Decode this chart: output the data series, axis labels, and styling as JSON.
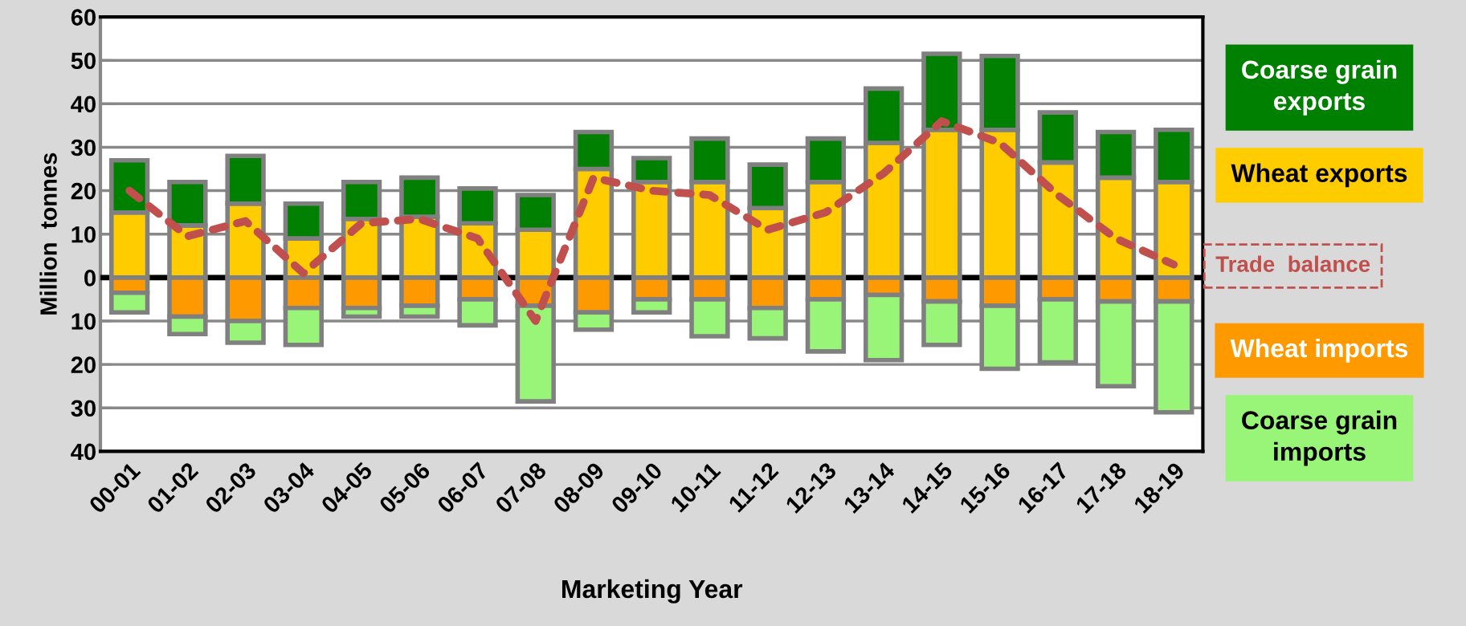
{
  "chart_data": {
    "type": "bar",
    "stacked": true,
    "xlabel": "Marketing Year",
    "ylabel": "Million  tonnes",
    "categories": [
      "00-01",
      "01-02",
      "02-03",
      "03-04",
      "04-05",
      "05-06",
      "06-07",
      "07-08",
      "08-09",
      "09-10",
      "10-11",
      "11-12",
      "12-13",
      "13-14",
      "14-15",
      "15-16",
      "16-17",
      "17-18",
      "18-19"
    ],
    "series": [
      {
        "name": "Wheat exports",
        "color": "#ffcc00",
        "values": [
          15,
          12,
          17,
          9,
          13.5,
          14,
          12.5,
          11,
          25,
          22,
          22,
          16,
          22,
          31,
          34,
          34,
          26.5,
          23,
          22
        ]
      },
      {
        "name": "Coarse grain\nexports",
        "color": "#008000",
        "values": [
          12,
          10,
          11,
          8,
          8.5,
          9,
          8,
          8,
          8.5,
          5.5,
          10,
          10,
          10,
          12.5,
          17.5,
          17,
          11.5,
          10.5,
          12
        ]
      },
      {
        "name": "Wheat imports",
        "color": "#ff9900",
        "values": [
          -3.5,
          -9,
          -10,
          -7,
          -7,
          -6.5,
          -5,
          -6.5,
          -8,
          -5,
          -5,
          -7,
          -5,
          -4,
          -5.5,
          -6.5,
          -5,
          -5.5,
          -5.5
        ]
      },
      {
        "name": "Coarse grain\nimports",
        "color": "#99f577",
        "values": [
          -4.5,
          -4,
          -5,
          -8.5,
          -2,
          -2.5,
          -6,
          -22,
          -4,
          -3,
          -8.5,
          -7,
          -12,
          -15,
          -10,
          -14.5,
          -14.5,
          -19.5,
          -25.5
        ]
      },
      {
        "name": "Trade  balance",
        "type": "line",
        "color": "#c0504d",
        "line_style": "dashed",
        "values": [
          20,
          9.5,
          13,
          1,
          12.5,
          13.5,
          9,
          -10,
          23,
          20,
          19,
          11,
          15,
          24,
          36,
          31,
          19,
          9,
          3
        ]
      }
    ],
    "ylim": [
      -40,
      60
    ],
    "yticks": [
      {
        "value": -40,
        "label": "40"
      },
      {
        "value": -30,
        "label": "30"
      },
      {
        "value": -20,
        "label": "20"
      },
      {
        "value": -10,
        "label": "10"
      },
      0,
      10,
      20,
      30,
      40,
      50,
      60
    ],
    "ref_lines": [
      {
        "axis": "y",
        "value": 0,
        "color": "#000000"
      }
    ],
    "grid": "y",
    "legend": "right",
    "marker": "none"
  }
}
